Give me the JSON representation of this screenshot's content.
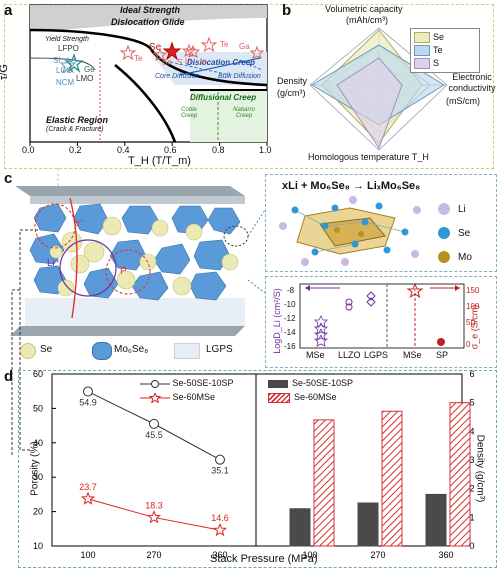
{
  "panels": {
    "a": "a",
    "b": "b",
    "c": "c",
    "d": "d"
  },
  "panel_a": {
    "ylabel": "τ/G",
    "xlabel": "T_H (T/T_m)",
    "xticks": [
      "0.0",
      "0.2",
      "0.4",
      "0.6",
      "0.8",
      "1.0"
    ],
    "regions": {
      "ideal": "Ideal Strength",
      "glide": "Dislocation Glide",
      "yield": "Yield Strength",
      "disloc_creep": "Dislocation Creep",
      "core_diff": "Core Diffusion",
      "bulk_diff": "Bulk Diffusion",
      "diff_creep": "Diffusional Creep",
      "coble": "Coble Creep",
      "nabarro": "Nabarro Creep",
      "elastic": "Elastic Region",
      "crack": "(Crack & Fracture)"
    },
    "materials": {
      "se": "Se",
      "te": "Te",
      "s": "S",
      "sn": "Sn",
      "li": "Li",
      "in": "In",
      "ga": "Ga",
      "lfpo": "LFPO",
      "si": "Si",
      "lco": "LCO",
      "ge": "Ge",
      "lmo": "LMO",
      "ncm": "NCM"
    }
  },
  "panel_b": {
    "axes": {
      "top": "Volumetric capacity",
      "top_unit": "(mAh/cm³)",
      "left": "Density",
      "left_unit": "(g/cm³)",
      "right": "Electronic conductivity",
      "right_unit": "(mS/cm)",
      "bottom": "Homologous temperature T_H"
    },
    "legend": [
      {
        "label": "Se",
        "color": "#ecebc0"
      },
      {
        "label": "Te",
        "color": "#bcd8ec"
      },
      {
        "label": "S",
        "color": "#ddd0ea"
      }
    ]
  },
  "panel_c": {
    "reaction": "xLi + Mo₆Se₈ → LiₓMo₆Se₈",
    "atom_legend": [
      {
        "label": "Li",
        "color": "#c9b9e6"
      },
      {
        "label": "Se",
        "color": "#2f97d6"
      },
      {
        "label": "Mo",
        "color": "#b8921e"
      }
    ],
    "cell_labels": {
      "e": "e⁻",
      "li": "Li⁺",
      "p": "P"
    },
    "bottom_legend": [
      {
        "label": "Se",
        "kind": "se"
      },
      {
        "label": "Mo₆Se₈",
        "kind": "mse"
      },
      {
        "label": "LGPS",
        "kind": "lgps"
      }
    ],
    "inset": {
      "ylabel_left": "LogD_Li (cm²/S)",
      "ylabel_right": "σ_e (S/cm)",
      "left_ticks": [
        "-8",
        "-10",
        "-12",
        "-14",
        "-16"
      ],
      "right_ticks": [
        "150",
        "100",
        "50",
        "0"
      ],
      "categories_left": [
        "MSe",
        "LLZO",
        "LGPS"
      ],
      "categories_right": [
        "MSe",
        "SP"
      ]
    }
  },
  "chart_data": [
    {
      "type": "line",
      "title": "",
      "xlabel": "Stack Pressure (MPa)",
      "ylabel": "Porosity (%)",
      "categories": [
        "100",
        "270",
        "360"
      ],
      "ylim": [
        10,
        60
      ],
      "yticks": [
        "10",
        "20",
        "30",
        "40",
        "50",
        "60"
      ],
      "series": [
        {
          "name": "Se-50SE-10SP",
          "values": [
            54.9,
            45.5,
            35.1
          ],
          "labels": [
            "54.9",
            "45.5",
            "35.1"
          ],
          "color": "#333333"
        },
        {
          "name": "Se-60MSe",
          "values": [
            23.7,
            18.3,
            14.6
          ],
          "labels": [
            "23.7",
            "18.3",
            "14.6"
          ],
          "color": "#e02020"
        }
      ]
    },
    {
      "type": "bar",
      "title": "",
      "xlabel": "Stack Pressure (MPa)",
      "ylabel": "Density (g/cm³)",
      "categories": [
        "100",
        "270",
        "360"
      ],
      "ylim": [
        0,
        6
      ],
      "yticks": [
        "0",
        "1",
        "2",
        "3",
        "4",
        "5",
        "6"
      ],
      "series": [
        {
          "name": "Se-50SE-10SP",
          "values": [
            1.3,
            1.5,
            1.8
          ],
          "color": "#4a4a4a"
        },
        {
          "name": "Se-60MSe",
          "values": [
            4.4,
            4.7,
            5.0
          ],
          "color": "#d83030"
        }
      ]
    }
  ]
}
